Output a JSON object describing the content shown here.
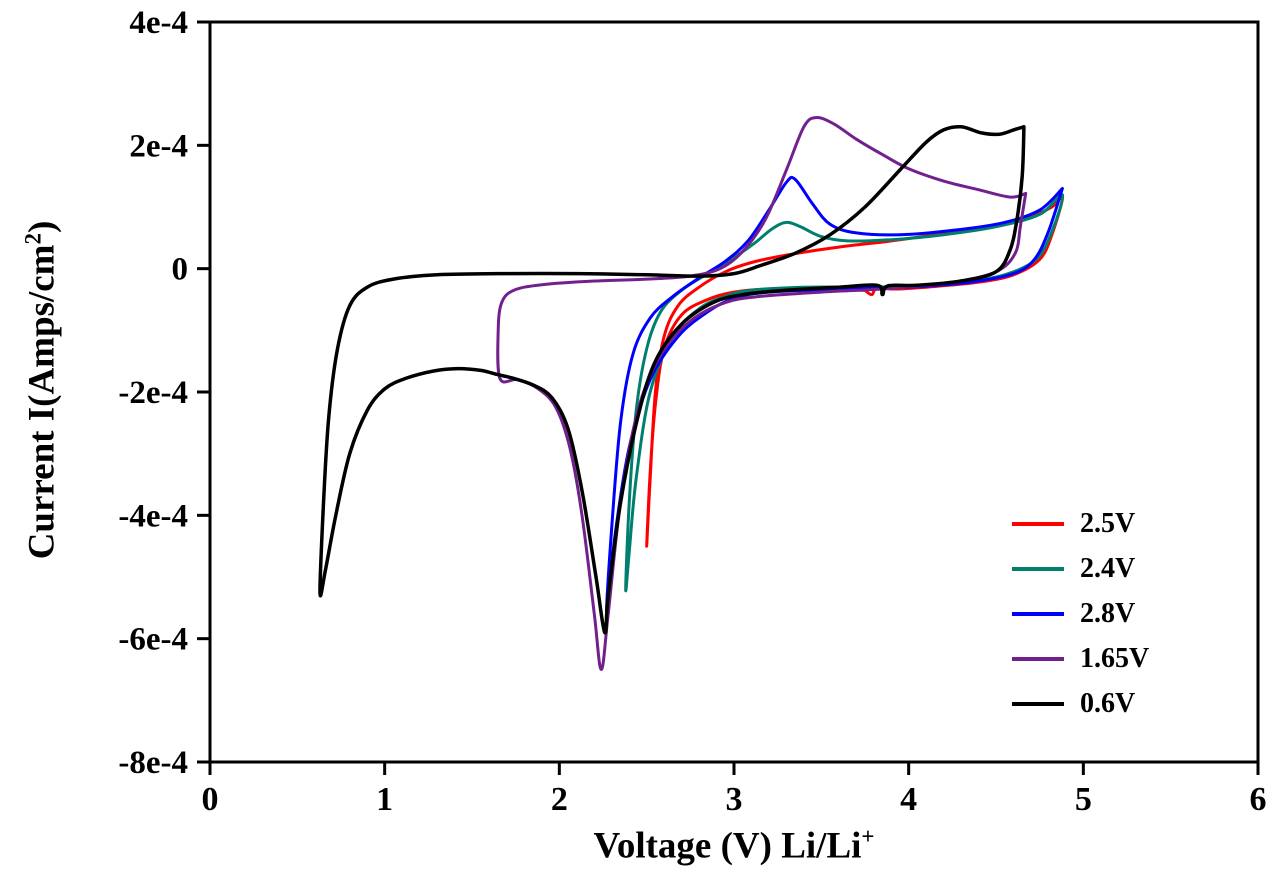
{
  "axes": {
    "y_title_main": "Current I(Amps/cm",
    "y_title_sup": "2",
    "y_title_close": ")",
    "x_title_main": "Voltage (V) Li/Li",
    "x_title_sup": "+"
  },
  "chart_data": {
    "type": "line",
    "title": "",
    "xlabel": "Voltage (V) Li/Li+",
    "ylabel": "Current I(Amps/cm2)",
    "xlim": [
      0,
      6
    ],
    "ylim": [
      -0.0008,
      0.0004
    ],
    "grid": false,
    "legend_position": "inside-lower-right",
    "x_ticks": [
      0,
      1,
      2,
      3,
      4,
      5,
      6
    ],
    "x_tick_labels": [
      "0",
      "1",
      "2",
      "3",
      "4",
      "5",
      "6"
    ],
    "y_ticks": [
      0.0004,
      0.0002,
      0,
      -0.0002,
      -0.0004,
      -0.0006,
      -0.0008
    ],
    "y_tick_labels": [
      "4e-4",
      "2e-4",
      "0",
      "-2e-4",
      "-4e-4",
      "-6e-4",
      "-8e-4"
    ],
    "series": [
      {
        "name": "2.5V",
        "color": "#ff0000",
        "points": [
          [
            3.75,
            -3.5e-05
          ],
          [
            3.5,
            -3.2e-05
          ],
          [
            3.2,
            -3.3e-05
          ],
          [
            3.0,
            -3.8e-05
          ],
          [
            2.85,
            -5e-05
          ],
          [
            2.7,
            -7.5e-05
          ],
          [
            2.6,
            -0.00013
          ],
          [
            2.55,
            -0.00022
          ],
          [
            2.52,
            -0.00033
          ],
          [
            2.5,
            -0.00045
          ],
          [
            2.52,
            -0.00034
          ],
          [
            2.55,
            -0.0002
          ],
          [
            2.6,
            -0.00011
          ],
          [
            2.68,
            -6e-05
          ],
          [
            2.8,
            -3e-05
          ],
          [
            2.95,
            -5e-06
          ],
          [
            3.1,
            1e-05
          ],
          [
            3.3,
            2.2e-05
          ],
          [
            3.6,
            3.5e-05
          ],
          [
            3.9,
            4.5e-05
          ],
          [
            4.2,
            5.7e-05
          ],
          [
            4.5,
            7e-05
          ],
          [
            4.7,
            8.5e-05
          ],
          [
            4.82,
            0.0001
          ],
          [
            4.88,
            0.000115
          ],
          [
            4.82,
            5.5e-05
          ],
          [
            4.75,
            1.5e-05
          ],
          [
            4.6,
            -1e-05
          ],
          [
            4.4,
            -2.2e-05
          ],
          [
            4.1,
            -3e-05
          ],
          [
            3.9,
            -3.3e-05
          ],
          [
            3.82,
            -2.8e-05
          ],
          [
            3.79,
            -4.2e-05
          ],
          [
            3.75,
            -3.5e-05
          ]
        ]
      },
      {
        "name": "2.4V",
        "color": "#00806c",
        "points": [
          [
            3.8,
            -3e-05
          ],
          [
            3.4,
            -3e-05
          ],
          [
            3.1,
            -3.5e-05
          ],
          [
            2.95,
            -4.5e-05
          ],
          [
            2.8,
            -6.5e-05
          ],
          [
            2.65,
            -0.00011
          ],
          [
            2.52,
            -0.0002
          ],
          [
            2.44,
            -0.00034
          ],
          [
            2.4,
            -0.00046
          ],
          [
            2.38,
            -0.00052
          ],
          [
            2.4,
            -0.00038
          ],
          [
            2.44,
            -0.00023
          ],
          [
            2.5,
            -0.00013
          ],
          [
            2.58,
            -7e-05
          ],
          [
            2.7,
            -3.5e-05
          ],
          [
            2.85,
            -8e-06
          ],
          [
            3.0,
            1.8e-05
          ],
          [
            3.12,
            4.2e-05
          ],
          [
            3.22,
            6.5e-05
          ],
          [
            3.3,
            7.5e-05
          ],
          [
            3.38,
            6.8e-05
          ],
          [
            3.5,
            5.2e-05
          ],
          [
            3.65,
            4.5e-05
          ],
          [
            3.9,
            4.7e-05
          ],
          [
            4.2,
            5.5e-05
          ],
          [
            4.5,
            6.8e-05
          ],
          [
            4.75,
            8.8e-05
          ],
          [
            4.88,
            0.00012
          ],
          [
            4.82,
            6e-05
          ],
          [
            4.73,
            1.5e-05
          ],
          [
            4.55,
            -1e-05
          ],
          [
            4.3,
            -2.2e-05
          ],
          [
            4.0,
            -2.8e-05
          ],
          [
            3.8,
            -3e-05
          ]
        ]
      },
      {
        "name": "2.8V",
        "color": "#0000ff",
        "points": [
          [
            4.88,
            0.00013
          ],
          [
            4.8,
            6e-05
          ],
          [
            4.72,
            1.5e-05
          ],
          [
            4.6,
            -8e-06
          ],
          [
            4.35,
            -2.2e-05
          ],
          [
            4.0,
            -3e-05
          ],
          [
            3.6,
            -3.3e-05
          ],
          [
            3.2,
            -3.8e-05
          ],
          [
            3.0,
            -4.8e-05
          ],
          [
            2.85,
            -7e-05
          ],
          [
            2.68,
            -0.00011
          ],
          [
            2.52,
            -0.00018
          ],
          [
            2.4,
            -0.00029
          ],
          [
            2.32,
            -0.00043
          ],
          [
            2.27,
            -0.00056
          ],
          [
            2.3,
            -0.00042
          ],
          [
            2.35,
            -0.00025
          ],
          [
            2.42,
            -0.00014
          ],
          [
            2.52,
            -8e-05
          ],
          [
            2.65,
            -4.5e-05
          ],
          [
            2.8,
            -1.5e-05
          ],
          [
            2.95,
            1.2e-05
          ],
          [
            3.08,
            4.5e-05
          ],
          [
            3.2,
            9.5e-05
          ],
          [
            3.3,
            0.00014
          ],
          [
            3.35,
            0.000145
          ],
          [
            3.45,
            0.000105
          ],
          [
            3.55,
            7.2e-05
          ],
          [
            3.7,
            5.8e-05
          ],
          [
            3.95,
            5.5e-05
          ],
          [
            4.25,
            6.2e-05
          ],
          [
            4.55,
            7.5e-05
          ],
          [
            4.75,
            9.5e-05
          ],
          [
            4.88,
            0.00013
          ]
        ]
      },
      {
        "name": "1.65V",
        "color": "#71208e",
        "points": [
          [
            4.67,
            0.000122
          ],
          [
            4.64,
            7e-05
          ],
          [
            4.61,
            2.5e-05
          ],
          [
            4.5,
            -5e-06
          ],
          [
            4.25,
            -2.2e-05
          ],
          [
            3.9,
            -3.2e-05
          ],
          [
            3.5,
            -3.8e-05
          ],
          [
            3.15,
            -4.5e-05
          ],
          [
            2.95,
            -5.5e-05
          ],
          [
            2.75,
            -8.5e-05
          ],
          [
            2.58,
            -0.00014
          ],
          [
            2.45,
            -0.00023
          ],
          [
            2.35,
            -0.00038
          ],
          [
            2.28,
            -0.00056
          ],
          [
            2.24,
            -0.00065
          ],
          [
            2.2,
            -0.00056
          ],
          [
            2.13,
            -0.0004
          ],
          [
            2.06,
            -0.00029
          ],
          [
            1.98,
            -0.000225
          ],
          [
            1.88,
            -0.000195
          ],
          [
            1.76,
            -0.00018
          ],
          [
            1.66,
            -0.000178
          ],
          [
            1.65,
            -0.0001
          ],
          [
            1.67,
            -5.5e-05
          ],
          [
            1.74,
            -3.5e-05
          ],
          [
            1.9,
            -2.6e-05
          ],
          [
            2.2,
            -2e-05
          ],
          [
            2.5,
            -1.7e-05
          ],
          [
            2.75,
            -1.2e-05
          ],
          [
            2.92,
            0.0
          ],
          [
            3.05,
            2.8e-05
          ],
          [
            3.18,
            8e-05
          ],
          [
            3.3,
            0.00016
          ],
          [
            3.4,
            0.00023
          ],
          [
            3.47,
            0.000245
          ],
          [
            3.57,
            0.000235
          ],
          [
            3.7,
            0.00021
          ],
          [
            3.85,
            0.000185
          ],
          [
            4.0,
            0.000162
          ],
          [
            4.2,
            0.000142
          ],
          [
            4.4,
            0.000128
          ],
          [
            4.58,
            0.000116
          ],
          [
            4.67,
            0.000122
          ]
        ]
      },
      {
        "name": "0.6V",
        "color": "#000000",
        "points": [
          [
            4.66,
            0.00023
          ],
          [
            4.65,
            0.00015
          ],
          [
            4.62,
            8e-05
          ],
          [
            4.58,
            3e-05
          ],
          [
            4.5,
            -5e-06
          ],
          [
            4.3,
            -2e-05
          ],
          [
            4.05,
            -2.7e-05
          ],
          [
            3.88,
            -2.8e-05
          ],
          [
            3.85,
            -4.2e-05
          ],
          [
            3.82,
            -2.7e-05
          ],
          [
            3.6,
            -3e-05
          ],
          [
            3.3,
            -3.5e-05
          ],
          [
            3.05,
            -4.2e-05
          ],
          [
            2.88,
            -5.5e-05
          ],
          [
            2.7,
            -9e-05
          ],
          [
            2.55,
            -0.00015
          ],
          [
            2.45,
            -0.00024
          ],
          [
            2.35,
            -0.00038
          ],
          [
            2.28,
            -0.00053
          ],
          [
            2.26,
            -0.00059
          ],
          [
            2.21,
            -0.0005
          ],
          [
            2.13,
            -0.00036
          ],
          [
            2.05,
            -0.00026
          ],
          [
            1.96,
            -0.00021
          ],
          [
            1.86,
            -0.00019
          ],
          [
            1.74,
            -0.000178
          ],
          [
            1.65,
            -0.000172
          ],
          [
            1.55,
            -0.000165
          ],
          [
            1.42,
            -0.000162
          ],
          [
            1.28,
            -0.000166
          ],
          [
            1.12,
            -0.000178
          ],
          [
            1.0,
            -0.000195
          ],
          [
            0.9,
            -0.00023
          ],
          [
            0.8,
            -0.0003
          ],
          [
            0.72,
            -0.0004
          ],
          [
            0.66,
            -0.00049
          ],
          [
            0.63,
            -0.000525
          ],
          [
            0.65,
            -0.00038
          ],
          [
            0.68,
            -0.00024
          ],
          [
            0.73,
            -0.00013
          ],
          [
            0.8,
            -6e-05
          ],
          [
            0.9,
            -3e-05
          ],
          [
            1.05,
            -1.7e-05
          ],
          [
            1.3,
            -1e-05
          ],
          [
            1.7,
            -8e-06
          ],
          [
            2.1,
            -8e-06
          ],
          [
            2.5,
            -1e-05
          ],
          [
            2.8,
            -1.2e-05
          ],
          [
            3.0,
            -8e-06
          ],
          [
            3.15,
            5e-06
          ],
          [
            3.35,
            2.5e-05
          ],
          [
            3.55,
            5.5e-05
          ],
          [
            3.75,
            0.0001
          ],
          [
            3.95,
            0.00016
          ],
          [
            4.1,
            0.000205
          ],
          [
            4.2,
            0.000225
          ],
          [
            4.3,
            0.00023
          ],
          [
            4.42,
            0.00022
          ],
          [
            4.52,
            0.000218
          ],
          [
            4.6,
            0.000225
          ],
          [
            4.66,
            0.00023
          ]
        ]
      }
    ]
  }
}
